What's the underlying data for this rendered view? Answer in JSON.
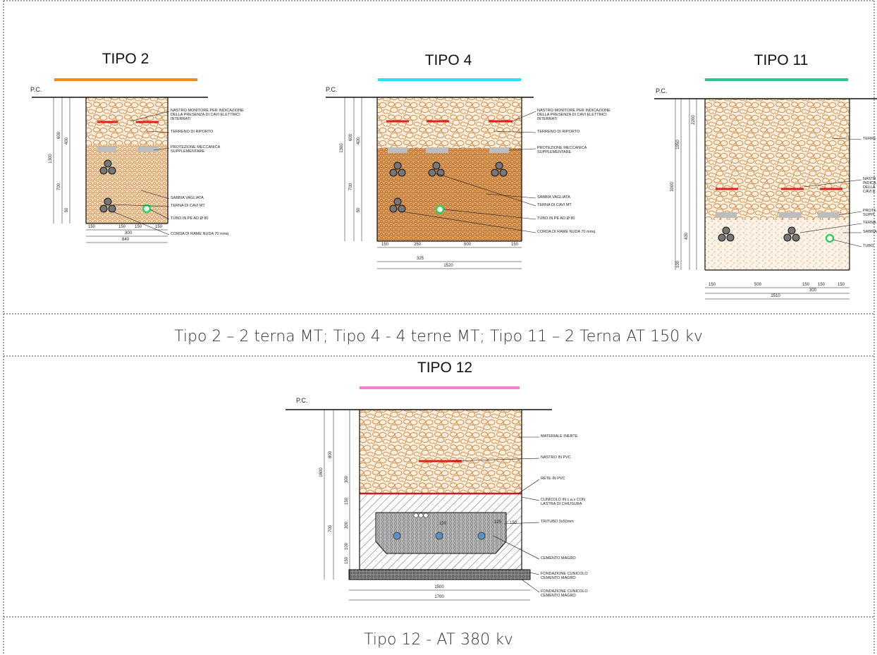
{
  "drawings": [
    {
      "title": "TIPO 2",
      "pc": "P.C.",
      "labels": [
        [
          "NASTRO MONITORE PER INDICAZIONE",
          "DELLA PRESENZA DI CAVI ELETTRICI",
          "INTERRATI"
        ],
        [
          "TERRENO DI RIPORTO"
        ],
        [
          "PROTEZIONE MECCANICA",
          "SUPPLEMENTARE"
        ],
        [
          "SABBIA VAGLIATA"
        ],
        [
          "TERNA DI CAVI MT"
        ],
        [
          "TUBO IN PE AD Ø 80"
        ],
        [
          "CORDA DI RAME NUDA 70 mmq"
        ]
      ],
      "dims_bottom": [
        150,
        150,
        150,
        150,
        300,
        840
      ],
      "dims_left": [
        1300,
        600,
        400,
        700,
        50
      ]
    },
    {
      "title": "TIPO 4",
      "pc": "P.C.",
      "labels": [
        [
          "NASTRO MONITORE PER INDICAZIONE",
          "DELLA PRESENZA DI CAVI ELETTRICI",
          "INTERRATI"
        ],
        [
          "TERRENO DI RIPORTO"
        ],
        [
          "PROTEZIONE MECCANICA",
          "SUPPLEMENTARE"
        ],
        [
          "SABBIA VAGLIATA"
        ],
        [
          "TERNA DI CAVI MT"
        ],
        [
          "TUBO IN PE AD Ø 80"
        ],
        [
          "CORDA DI RAME NUDA 70 mmq"
        ]
      ],
      "dims_bottom": [
        150,
        250,
        500,
        150,
        325,
        1520
      ],
      "dims_left": [
        1300,
        600,
        400,
        700,
        50
      ]
    },
    {
      "title": "TIPO 11",
      "pc": "P.C.",
      "labels": [
        [
          "TERRE"
        ],
        [
          "NASTR",
          "INDICA",
          "DELLA",
          "CAVI E"
        ],
        [
          "PROTE",
          "SUPPL"
        ],
        [
          "TERNA"
        ],
        [
          "SABBIA"
        ],
        [
          "TUBO"
        ]
      ],
      "dims_bottom": [
        150,
        500,
        150,
        150,
        150,
        300,
        1510
      ],
      "dims_left": [
        3000,
        1950,
        2200,
        430,
        100
      ]
    },
    {
      "title": "TIPO 12",
      "pc": "P.C.",
      "labels": [
        [
          "MATERIALE INERTE"
        ],
        [
          "NASTRO IN PVC"
        ],
        [
          "RETE IN PVC"
        ],
        [
          "CUNICOLO IN c.a.v CON",
          "LASTRA DI CHIUSURA"
        ],
        [
          "TRITUBO 3x50mm"
        ],
        [
          "CEMENTO MAGRO"
        ],
        [
          "FONDAZIONE CUNICOLO",
          "CEMENTO MAGRO"
        ],
        [
          "FONDAZIONE CUNICOLO",
          "CEMENTO MAGRO"
        ]
      ],
      "dims_bottom": [
        1500,
        1700,
        120,
        125,
        150
      ],
      "dims_left": [
        1600,
        800,
        300,
        700,
        150,
        300,
        100,
        150
      ]
    }
  ],
  "captions": [
    "Tipo 2 – 2 terna MT; Tipo 4 - 4 terne MT; Tipo 11 – 2 Terna AT 150 kv",
    "Tipo 12 - AT 380 kv"
  ]
}
